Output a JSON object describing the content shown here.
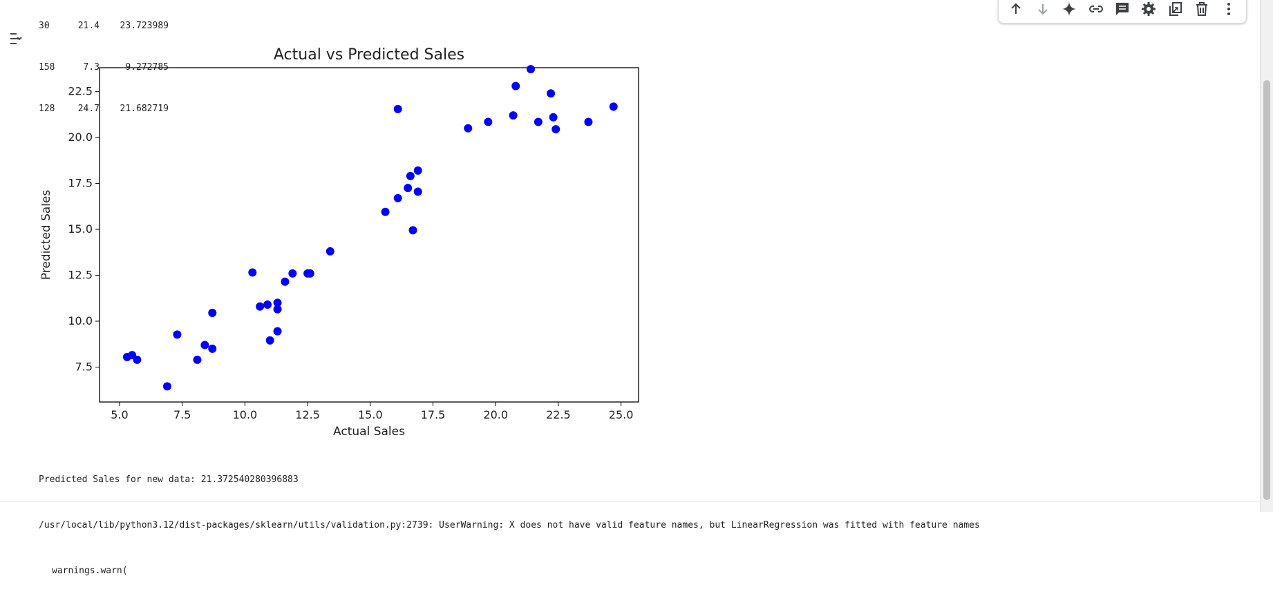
{
  "dataframe_tail": {
    "rows": [
      {
        "index": "30",
        "actual": "21.4",
        "predicted": "23.723989"
      },
      {
        "index": "158",
        "actual": "7.3",
        "predicted": "9.272785"
      },
      {
        "index": "128",
        "actual": "24.7",
        "predicted": "21.682719"
      }
    ]
  },
  "toolbar": {
    "icons": [
      "arrow-up-icon",
      "arrow-down-icon",
      "sparkle-icon",
      "link-icon",
      "comment-icon",
      "gear-icon",
      "mirror-cell-icon",
      "trash-icon",
      "more-vert-icon"
    ]
  },
  "output_toggle": {
    "icon": "output-collapse-icon"
  },
  "chart_data": {
    "type": "scatter",
    "title": "Actual vs Predicted Sales",
    "xlabel": "Actual Sales",
    "ylabel": "Predicted Sales",
    "xlim": [
      4.2,
      25.7
    ],
    "ylim": [
      5.6,
      23.8
    ],
    "xticks": [
      "5.0",
      "7.5",
      "10.0",
      "12.5",
      "15.0",
      "17.5",
      "20.0",
      "22.5",
      "25.0"
    ],
    "yticks": [
      "7.5",
      "10.0",
      "12.5",
      "15.0",
      "17.5",
      "20.0",
      "22.5"
    ],
    "xtick_values": [
      5.0,
      7.5,
      10.0,
      12.5,
      15.0,
      17.5,
      20.0,
      22.5,
      25.0
    ],
    "ytick_values": [
      7.5,
      10.0,
      12.5,
      15.0,
      17.5,
      20.0,
      22.5
    ],
    "marker_color": "#0000ff",
    "points": [
      {
        "x": 5.3,
        "y": 8.05
      },
      {
        "x": 5.5,
        "y": 8.15
      },
      {
        "x": 5.7,
        "y": 7.9
      },
      {
        "x": 6.9,
        "y": 6.45
      },
      {
        "x": 7.3,
        "y": 9.27
      },
      {
        "x": 8.1,
        "y": 7.9
      },
      {
        "x": 8.4,
        "y": 8.7
      },
      {
        "x": 8.7,
        "y": 8.5
      },
      {
        "x": 8.7,
        "y": 10.45
      },
      {
        "x": 10.3,
        "y": 12.65
      },
      {
        "x": 10.6,
        "y": 10.8
      },
      {
        "x": 10.9,
        "y": 10.9
      },
      {
        "x": 11.0,
        "y": 8.95
      },
      {
        "x": 11.3,
        "y": 11.0
      },
      {
        "x": 11.3,
        "y": 10.65
      },
      {
        "x": 11.3,
        "y": 9.45
      },
      {
        "x": 11.6,
        "y": 12.15
      },
      {
        "x": 11.9,
        "y": 12.6
      },
      {
        "x": 12.5,
        "y": 12.6
      },
      {
        "x": 12.6,
        "y": 12.6
      },
      {
        "x": 13.4,
        "y": 13.8
      },
      {
        "x": 15.6,
        "y": 15.95
      },
      {
        "x": 16.1,
        "y": 16.7
      },
      {
        "x": 16.1,
        "y": 21.55
      },
      {
        "x": 16.5,
        "y": 17.25
      },
      {
        "x": 16.6,
        "y": 17.9
      },
      {
        "x": 16.7,
        "y": 14.95
      },
      {
        "x": 16.9,
        "y": 18.2
      },
      {
        "x": 16.9,
        "y": 17.05
      },
      {
        "x": 18.9,
        "y": 20.5
      },
      {
        "x": 19.7,
        "y": 20.85
      },
      {
        "x": 20.7,
        "y": 21.2
      },
      {
        "x": 20.8,
        "y": 22.8
      },
      {
        "x": 21.4,
        "y": 23.72
      },
      {
        "x": 21.7,
        "y": 20.85
      },
      {
        "x": 22.2,
        "y": 22.4
      },
      {
        "x": 22.3,
        "y": 21.1
      },
      {
        "x": 22.4,
        "y": 20.45
      },
      {
        "x": 23.7,
        "y": 20.85
      },
      {
        "x": 24.7,
        "y": 21.68
      }
    ]
  },
  "output": {
    "predicted_line": "Predicted Sales for new data: 21.372540280396883",
    "warning_line": "/usr/local/lib/python3.12/dist-packages/sklearn/utils/validation.py:2739: UserWarning: X does not have valid feature names, but LinearRegression was fitted with feature names",
    "warn_call": "warnings.warn("
  }
}
